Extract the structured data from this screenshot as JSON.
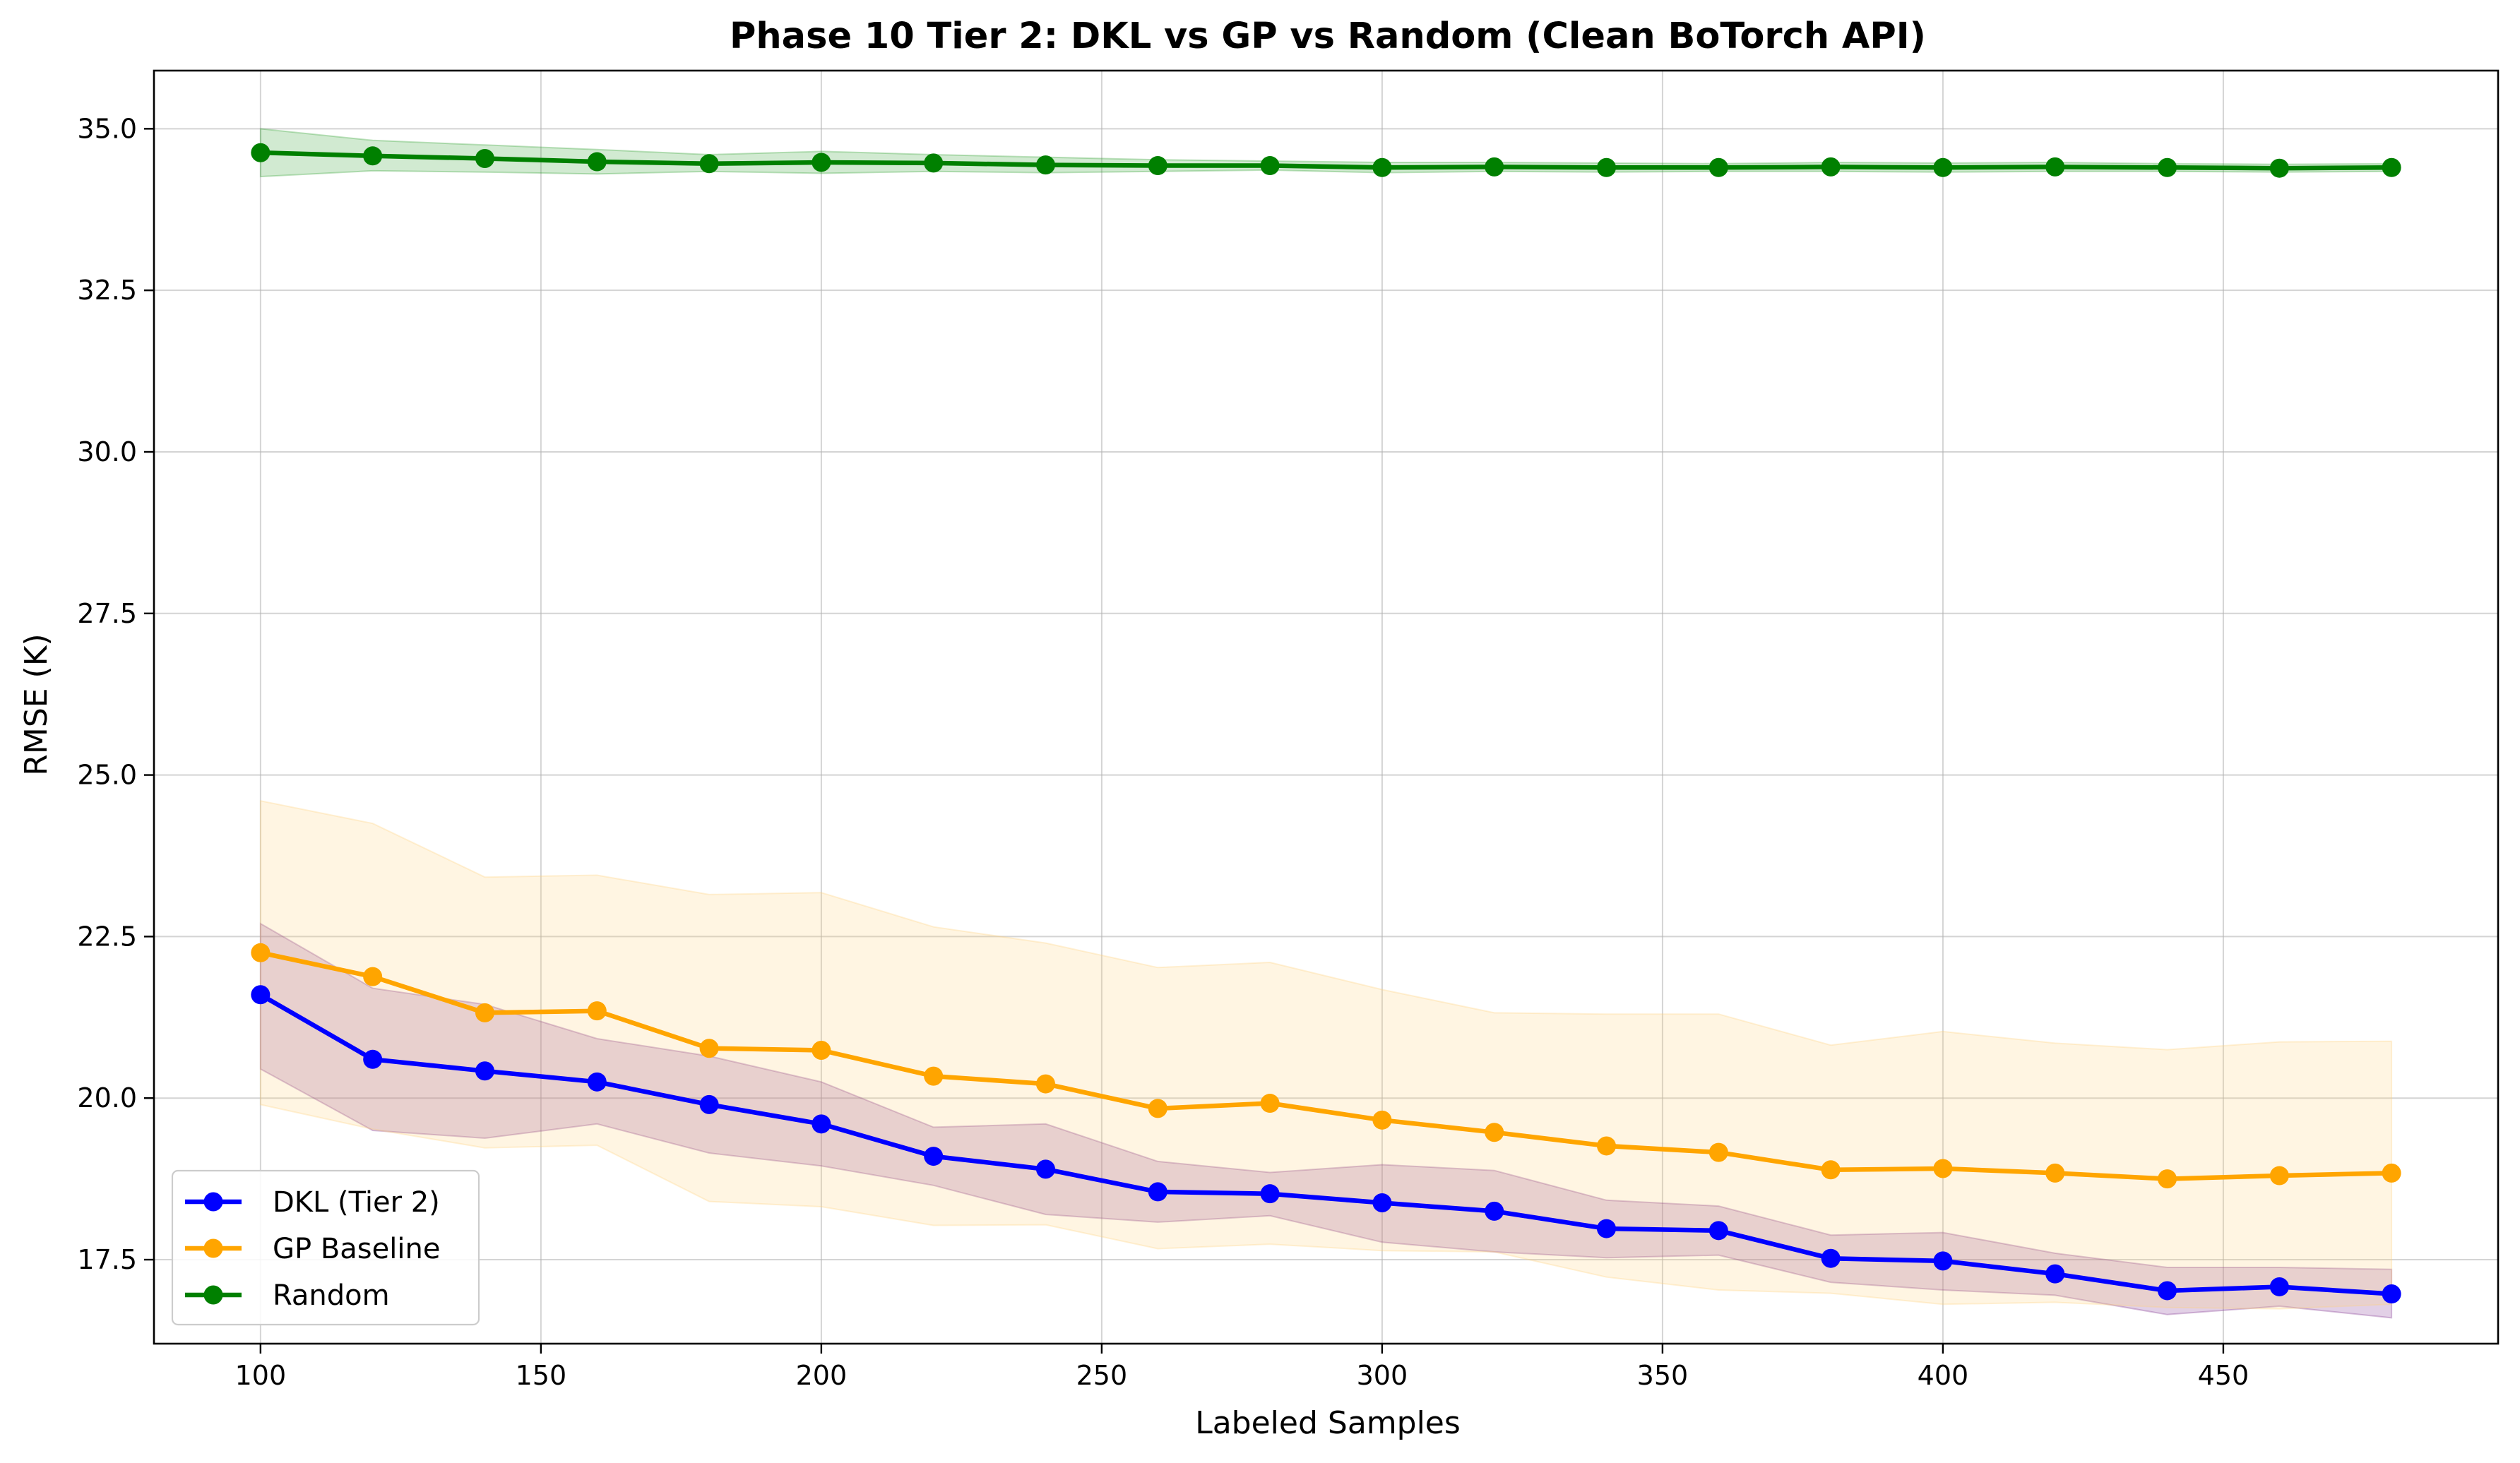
{
  "chart_data": {
    "type": "line",
    "title": "Phase 10 Tier 2: DKL vs GP vs Random (Clean BoTorch API)",
    "xlabel": "Labeled Samples",
    "ylabel": "RMSE (K)",
    "xlim": [
      81,
      499
    ],
    "ylim": [
      16.2,
      35.9
    ],
    "xticks": [
      100,
      150,
      200,
      250,
      300,
      350,
      400,
      450
    ],
    "yticks": [
      17.5,
      20.0,
      22.5,
      25.0,
      27.5,
      30.0,
      32.5,
      35.0
    ],
    "xtick_labels": [
      "100",
      "150",
      "200",
      "250",
      "300",
      "350",
      "400",
      "450"
    ],
    "ytick_labels": [
      "17.5",
      "20.0",
      "22.5",
      "25.0",
      "27.5",
      "30.0",
      "32.5",
      "35.0"
    ],
    "grid": true,
    "legend_position": "lower-left",
    "x": [
      100,
      120,
      140,
      160,
      180,
      200,
      220,
      240,
      260,
      280,
      300,
      320,
      340,
      360,
      380,
      400,
      420,
      440,
      460,
      480
    ],
    "series": [
      {
        "name": "DKL (Tier 2)",
        "color": "#0000ff",
        "values": [
          21.6,
          20.6,
          20.42,
          20.25,
          19.9,
          19.6,
          19.1,
          18.9,
          18.55,
          18.52,
          18.38,
          18.25,
          17.98,
          17.95,
          17.52,
          17.48,
          17.28,
          17.02,
          17.08,
          16.97
        ],
        "upper": [
          22.7,
          21.7,
          21.45,
          20.92,
          20.65,
          20.25,
          19.55,
          19.6,
          19.02,
          18.85,
          18.97,
          18.88,
          18.42,
          18.33,
          17.88,
          17.92,
          17.6,
          17.38,
          17.38,
          17.35
        ],
        "lower": [
          20.45,
          19.5,
          19.38,
          19.6,
          19.15,
          18.95,
          18.65,
          18.2,
          18.08,
          18.18,
          17.77,
          17.62,
          17.53,
          17.57,
          17.15,
          17.03,
          16.95,
          16.65,
          16.78,
          16.6
        ],
        "band_color": "#7b2b8c"
      },
      {
        "name": "GP Baseline",
        "color": "#ffa500",
        "values": [
          22.25,
          21.88,
          21.32,
          21.35,
          20.77,
          20.74,
          20.34,
          20.22,
          19.84,
          19.92,
          19.66,
          19.47,
          19.26,
          19.16,
          18.89,
          18.91,
          18.84,
          18.75,
          18.8,
          18.84
        ],
        "upper": [
          24.6,
          24.25,
          23.42,
          23.45,
          23.15,
          23.18,
          22.65,
          22.4,
          22.02,
          22.1,
          21.68,
          21.32,
          21.3,
          21.3,
          20.82,
          21.03,
          20.85,
          20.75,
          20.87,
          20.88
        ],
        "lower": [
          19.9,
          19.52,
          19.23,
          19.27,
          18.4,
          18.32,
          18.03,
          18.04,
          17.67,
          17.74,
          17.64,
          17.62,
          17.23,
          17.03,
          16.98,
          16.81,
          16.84,
          16.76,
          16.74,
          16.81
        ],
        "band_color": "#ffd27a"
      },
      {
        "name": "Random",
        "color": "#008000",
        "values": [
          34.63,
          34.58,
          34.54,
          34.49,
          34.46,
          34.48,
          34.47,
          34.44,
          34.43,
          34.43,
          34.4,
          34.41,
          34.4,
          34.4,
          34.41,
          34.4,
          34.41,
          34.4,
          34.39,
          34.4
        ],
        "upper": [
          35.0,
          34.82,
          34.75,
          34.68,
          34.6,
          34.65,
          34.6,
          34.56,
          34.52,
          34.5,
          34.48,
          34.48,
          34.47,
          34.46,
          34.48,
          34.47,
          34.48,
          34.46,
          34.45,
          34.46
        ],
        "lower": [
          34.26,
          34.35,
          34.33,
          34.3,
          34.34,
          34.31,
          34.34,
          34.32,
          34.34,
          34.36,
          34.32,
          34.34,
          34.33,
          34.34,
          34.34,
          34.33,
          34.34,
          34.34,
          34.33,
          34.34
        ],
        "band_color": "#2ca02c"
      }
    ]
  }
}
